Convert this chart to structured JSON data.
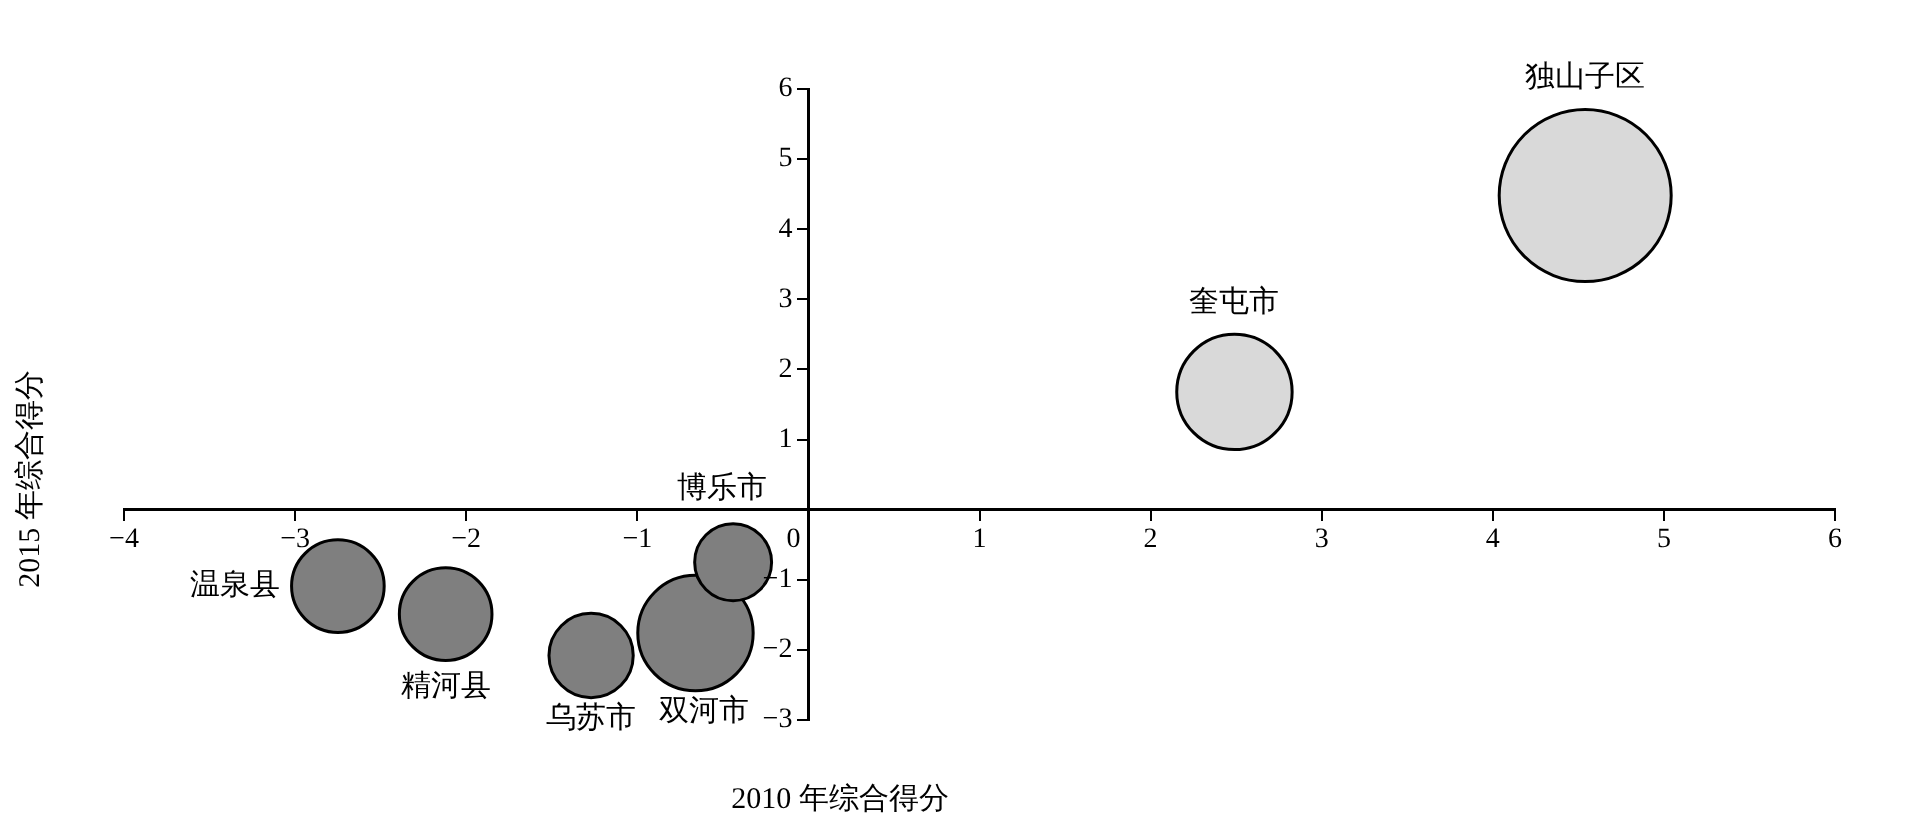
{
  "chart_data": {
    "type": "bubble",
    "xlabel": "2010 年综合得分",
    "ylabel": "2015 年综合得分",
    "xlim": [
      -4,
      6
    ],
    "xticks": [
      -4,
      -3,
      -2,
      -1,
      0,
      1,
      2,
      3,
      4,
      5,
      6
    ],
    "ylim": [
      -3,
      6
    ],
    "yticks": [
      -3,
      -2,
      -1,
      1,
      2,
      3,
      4,
      5,
      6
    ],
    "grid": false,
    "legend": false,
    "series": [
      {
        "name": "独山子区",
        "color": "#d9d9d9",
        "x": [
          4.54
        ],
        "values": [
          4.48
        ],
        "sizes": [
          1
        ]
      },
      {
        "name": "奎屯市",
        "color": "#d9d9d9",
        "x": [
          2.49
        ],
        "values": [
          1.68
        ],
        "sizes": [
          0.45
        ]
      },
      {
        "name": "博乐市",
        "color": "#7f7f7f",
        "x": [
          -0.44
        ],
        "values": [
          -0.75
        ],
        "sizes": [
          0.2
        ]
      },
      {
        "name": "温泉县",
        "color": "#7f7f7f",
        "x": [
          -2.75
        ],
        "values": [
          -1.09
        ],
        "sizes": [
          0.29
        ]
      },
      {
        "name": "精河县",
        "color": "#7f7f7f",
        "x": [
          -2.12
        ],
        "values": [
          -1.49
        ],
        "sizes": [
          0.29
        ]
      },
      {
        "name": "乌苏市",
        "color": "#7f7f7f",
        "x": [
          -1.27
        ],
        "values": [
          -2.08
        ],
        "sizes": [
          0.24
        ]
      },
      {
        "name": "双河市",
        "color": "#7f7f7f",
        "x": [
          -0.66
        ],
        "values": [
          -1.76
        ],
        "sizes": [
          0.45
        ]
      }
    ]
  }
}
